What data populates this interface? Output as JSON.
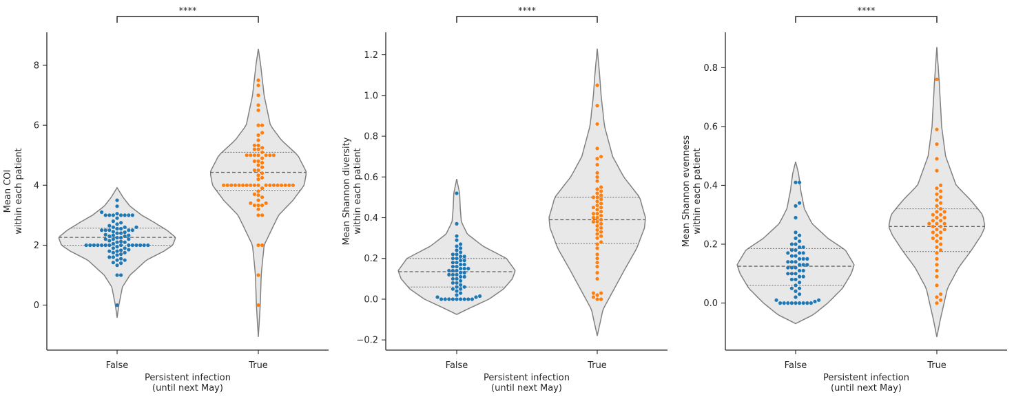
{
  "colors": {
    "false_points": "#1f77b4",
    "true_points": "#ff7f0e",
    "violin_fill": "#e8e8e8",
    "violin_edge": "#808080",
    "axis": "#262626"
  },
  "chart_data": [
    {
      "type": "violin-swarm",
      "xlabel": "Persistent infection\n(until next May)",
      "ylabel": "Mean COI\nwithin each patient",
      "categories": [
        "False",
        "True"
      ],
      "ylim": [
        -1.5,
        9.1
      ],
      "yticks": [
        0,
        2,
        4,
        6,
        8
      ],
      "significance": "****",
      "grid": false,
      "violins": [
        {
          "category": "False",
          "range": [
            -0.42,
            3.92
          ],
          "quartiles": [
            2.0,
            2.26,
            2.57
          ],
          "shape": [
            [
              -0.42,
              0.0
            ],
            [
              0.0,
              0.03
            ],
            [
              0.6,
              0.09
            ],
            [
              1.0,
              0.22
            ],
            [
              1.5,
              0.5
            ],
            [
              1.8,
              0.8
            ],
            [
              2.0,
              0.95
            ],
            [
              2.26,
              1.0
            ],
            [
              2.5,
              0.85
            ],
            [
              2.8,
              0.6
            ],
            [
              3.0,
              0.42
            ],
            [
              3.3,
              0.22
            ],
            [
              3.6,
              0.1
            ],
            [
              3.92,
              0.0
            ]
          ]
        },
        {
          "category": "True",
          "range": [
            -1.06,
            8.55
          ],
          "quartiles": [
            3.83,
            4.43,
            5.1
          ],
          "shape": [
            [
              -1.06,
              0.0
            ],
            [
              0.0,
              0.04
            ],
            [
              1.0,
              0.06
            ],
            [
              2.0,
              0.12
            ],
            [
              3.0,
              0.42
            ],
            [
              3.5,
              0.72
            ],
            [
              4.0,
              0.95
            ],
            [
              4.43,
              1.0
            ],
            [
              5.0,
              0.82
            ],
            [
              5.5,
              0.48
            ],
            [
              6.0,
              0.25
            ],
            [
              7.0,
              0.12
            ],
            [
              8.0,
              0.05
            ],
            [
              8.55,
              0.0
            ]
          ]
        }
      ],
      "points": [
        {
          "category": "False",
          "values": [
            0.0,
            1.0,
            1.0,
            1.33,
            1.4,
            1.42,
            1.5,
            1.5,
            1.55,
            1.6,
            1.6,
            1.67,
            1.7,
            1.75,
            1.75,
            1.8,
            1.8,
            1.83,
            1.85,
            1.9,
            1.9,
            1.95,
            2.0,
            2.0,
            2.0,
            2.0,
            2.0,
            2.0,
            2.0,
            2.0,
            2.0,
            2.0,
            2.0,
            2.0,
            2.0,
            2.0,
            2.05,
            2.1,
            2.1,
            2.12,
            2.15,
            2.2,
            2.2,
            2.2,
            2.25,
            2.25,
            2.3,
            2.3,
            2.33,
            2.33,
            2.35,
            2.4,
            2.4,
            2.43,
            2.45,
            2.5,
            2.5,
            2.5,
            2.5,
            2.5,
            2.55,
            2.55,
            2.6,
            2.6,
            2.6,
            2.65,
            2.7,
            2.75,
            2.8,
            2.9,
            3.0,
            3.0,
            3.0,
            3.0,
            3.0,
            3.0,
            3.0,
            3.05,
            3.1,
            3.3,
            3.5
          ]
        },
        {
          "category": "True",
          "values": [
            0.0,
            1.0,
            2.0,
            2.0,
            3.0,
            3.0,
            3.2,
            3.33,
            3.33,
            3.33,
            3.4,
            3.4,
            3.5,
            3.6,
            3.67,
            3.7,
            3.8,
            3.9,
            4.0,
            4.0,
            4.0,
            4.0,
            4.0,
            4.0,
            4.0,
            4.0,
            4.0,
            4.0,
            4.0,
            4.0,
            4.0,
            4.0,
            4.0,
            4.0,
            4.0,
            4.0,
            4.2,
            4.25,
            4.33,
            4.4,
            4.5,
            4.5,
            4.6,
            4.67,
            4.75,
            4.8,
            4.8,
            4.9,
            5.0,
            5.0,
            5.0,
            5.0,
            5.0,
            5.0,
            5.0,
            5.1,
            5.2,
            5.2,
            5.25,
            5.33,
            5.33,
            5.5,
            5.67,
            5.75,
            6.0,
            6.0,
            6.5,
            6.67,
            7.0,
            7.33,
            7.5
          ]
        }
      ]
    },
    {
      "type": "violin-swarm",
      "xlabel": "Persistent infection\n(until next May)",
      "ylabel": "Mean Shannon diversity\nwithin each patient",
      "categories": [
        "False",
        "True"
      ],
      "ylim": [
        -0.25,
        1.31
      ],
      "yticks": [
        -0.2,
        0.0,
        0.2,
        0.4,
        0.6,
        0.8,
        1.0,
        1.2
      ],
      "significance": "****",
      "grid": false,
      "violins": [
        {
          "category": "False",
          "range": [
            -0.075,
            0.59
          ],
          "quartiles": [
            0.06,
            0.135,
            0.2
          ],
          "shape": [
            [
              -0.075,
              0.0
            ],
            [
              -0.04,
              0.25
            ],
            [
              0.0,
              0.55
            ],
            [
              0.05,
              0.8
            ],
            [
              0.1,
              0.95
            ],
            [
              0.14,
              1.0
            ],
            [
              0.2,
              0.85
            ],
            [
              0.26,
              0.45
            ],
            [
              0.32,
              0.18
            ],
            [
              0.38,
              0.08
            ],
            [
              0.45,
              0.06
            ],
            [
              0.52,
              0.05
            ],
            [
              0.59,
              0.0
            ]
          ]
        },
        {
          "category": "True",
          "range": [
            -0.18,
            1.23
          ],
          "quartiles": [
            0.275,
            0.39,
            0.5
          ],
          "shape": [
            [
              -0.18,
              0.0
            ],
            [
              -0.05,
              0.12
            ],
            [
              0.05,
              0.35
            ],
            [
              0.15,
              0.58
            ],
            [
              0.25,
              0.82
            ],
            [
              0.35,
              0.98
            ],
            [
              0.4,
              1.0
            ],
            [
              0.5,
              0.88
            ],
            [
              0.6,
              0.55
            ],
            [
              0.7,
              0.32
            ],
            [
              0.85,
              0.15
            ],
            [
              1.0,
              0.08
            ],
            [
              1.1,
              0.05
            ],
            [
              1.23,
              0.0
            ]
          ]
        }
      ],
      "points": [
        {
          "category": "False",
          "values": [
            0.0,
            0.0,
            0.0,
            0.0,
            0.0,
            0.0,
            0.0,
            0.0,
            0.0,
            0.01,
            0.01,
            0.015,
            0.02,
            0.03,
            0.04,
            0.05,
            0.05,
            0.06,
            0.06,
            0.07,
            0.08,
            0.08,
            0.09,
            0.1,
            0.1,
            0.11,
            0.11,
            0.12,
            0.12,
            0.12,
            0.13,
            0.13,
            0.14,
            0.14,
            0.14,
            0.15,
            0.15,
            0.15,
            0.16,
            0.16,
            0.17,
            0.17,
            0.18,
            0.18,
            0.19,
            0.19,
            0.2,
            0.2,
            0.21,
            0.21,
            0.22,
            0.22,
            0.23,
            0.24,
            0.25,
            0.26,
            0.27,
            0.29,
            0.31,
            0.37,
            0.52
          ]
        },
        {
          "category": "True",
          "values": [
            0.0,
            0.0,
            0.01,
            0.02,
            0.03,
            0.03,
            0.1,
            0.13,
            0.16,
            0.18,
            0.2,
            0.22,
            0.25,
            0.27,
            0.28,
            0.3,
            0.31,
            0.32,
            0.33,
            0.34,
            0.35,
            0.36,
            0.37,
            0.38,
            0.38,
            0.39,
            0.4,
            0.4,
            0.41,
            0.42,
            0.42,
            0.43,
            0.44,
            0.45,
            0.45,
            0.46,
            0.47,
            0.48,
            0.49,
            0.5,
            0.5,
            0.51,
            0.52,
            0.53,
            0.54,
            0.55,
            0.58,
            0.6,
            0.62,
            0.66,
            0.69,
            0.7,
            0.74,
            0.86,
            0.95,
            1.05
          ]
        }
      ]
    },
    {
      "type": "violin-swarm",
      "xlabel": "Persistent infection\n(until next May)",
      "ylabel": "Mean Shannon evenness\nwithin each patient",
      "categories": [
        "False",
        "True"
      ],
      "ylim": [
        -0.16,
        0.92
      ],
      "yticks": [
        0.0,
        0.2,
        0.4,
        0.6,
        0.8
      ],
      "significance": "****",
      "grid": false,
      "violins": [
        {
          "category": "False",
          "range": [
            -0.07,
            0.48
          ],
          "quartiles": [
            0.06,
            0.125,
            0.185
          ],
          "shape": [
            [
              -0.07,
              0.0
            ],
            [
              -0.04,
              0.3
            ],
            [
              0.0,
              0.55
            ],
            [
              0.05,
              0.8
            ],
            [
              0.1,
              0.95
            ],
            [
              0.13,
              1.0
            ],
            [
              0.18,
              0.85
            ],
            [
              0.22,
              0.55
            ],
            [
              0.27,
              0.28
            ],
            [
              0.32,
              0.15
            ],
            [
              0.38,
              0.09
            ],
            [
              0.44,
              0.05
            ],
            [
              0.48,
              0.0
            ]
          ]
        },
        {
          "category": "True",
          "range": [
            -0.115,
            0.87
          ],
          "quartiles": [
            0.175,
            0.26,
            0.32
          ],
          "shape": [
            [
              -0.115,
              0.0
            ],
            [
              -0.05,
              0.08
            ],
            [
              0.05,
              0.22
            ],
            [
              0.12,
              0.45
            ],
            [
              0.18,
              0.72
            ],
            [
              0.23,
              0.92
            ],
            [
              0.26,
              1.0
            ],
            [
              0.3,
              0.95
            ],
            [
              0.35,
              0.7
            ],
            [
              0.4,
              0.4
            ],
            [
              0.5,
              0.18
            ],
            [
              0.6,
              0.1
            ],
            [
              0.75,
              0.05
            ],
            [
              0.87,
              0.0
            ]
          ]
        }
      ],
      "points": [
        {
          "category": "False",
          "values": [
            0.0,
            0.0,
            0.0,
            0.0,
            0.0,
            0.0,
            0.0,
            0.0,
            0.0,
            0.005,
            0.01,
            0.01,
            0.02,
            0.03,
            0.04,
            0.05,
            0.05,
            0.06,
            0.07,
            0.08,
            0.08,
            0.09,
            0.09,
            0.1,
            0.1,
            0.1,
            0.11,
            0.11,
            0.12,
            0.12,
            0.12,
            0.13,
            0.13,
            0.13,
            0.14,
            0.14,
            0.14,
            0.15,
            0.15,
            0.15,
            0.16,
            0.16,
            0.17,
            0.17,
            0.17,
            0.18,
            0.18,
            0.19,
            0.19,
            0.2,
            0.2,
            0.21,
            0.22,
            0.23,
            0.24,
            0.29,
            0.33,
            0.34,
            0.41,
            0.41
          ]
        },
        {
          "category": "True",
          "values": [
            0.0,
            0.01,
            0.02,
            0.03,
            0.06,
            0.09,
            0.11,
            0.13,
            0.15,
            0.17,
            0.18,
            0.19,
            0.2,
            0.21,
            0.22,
            0.22,
            0.23,
            0.24,
            0.24,
            0.25,
            0.25,
            0.26,
            0.26,
            0.27,
            0.27,
            0.27,
            0.28,
            0.28,
            0.29,
            0.29,
            0.3,
            0.3,
            0.31,
            0.31,
            0.32,
            0.33,
            0.34,
            0.35,
            0.36,
            0.37,
            0.38,
            0.39,
            0.4,
            0.45,
            0.49,
            0.54,
            0.59,
            0.76
          ]
        }
      ]
    }
  ]
}
